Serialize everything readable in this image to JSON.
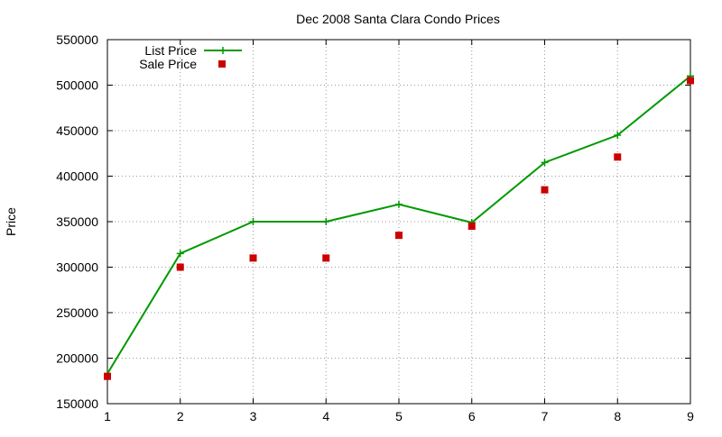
{
  "colors": {
    "list_price": "#009900",
    "sale_price": "#cc0000",
    "grid": "#999999",
    "axis": "#000000"
  },
  "chart_data": {
    "type": "line",
    "title": "Dec 2008 Santa Clara Condo Prices",
    "xlabel": "",
    "ylabel": "Price",
    "x": [
      1,
      2,
      3,
      4,
      5,
      6,
      7,
      8,
      9
    ],
    "xticks": [
      "1",
      "2",
      "3",
      "4",
      "5",
      "6",
      "7",
      "8",
      "9"
    ],
    "yticks": [
      "150000",
      "200000",
      "250000",
      "300000",
      "350000",
      "400000",
      "450000",
      "500000",
      "550000"
    ],
    "xlim": [
      1,
      9
    ],
    "ylim": [
      150000,
      550000
    ],
    "grid": true,
    "legend_position": "top-left",
    "series": [
      {
        "name": "List Price",
        "style": "line-with-plus-markers",
        "color": "#009900",
        "values": [
          183000,
          315000,
          350000,
          350000,
          369000,
          349000,
          415000,
          445000,
          510000
        ]
      },
      {
        "name": "Sale Price",
        "style": "square-points",
        "color": "#cc0000",
        "values": [
          180000,
          300000,
          310000,
          310000,
          335000,
          345000,
          385000,
          421000,
          505000
        ]
      }
    ]
  }
}
